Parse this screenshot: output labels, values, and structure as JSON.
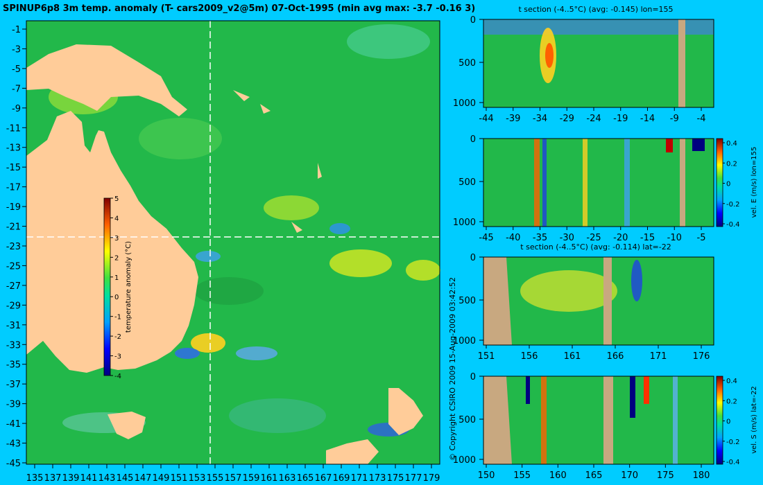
{
  "map": {
    "title": "SPINUP6p8 3m temp. anomaly (T- cars2009_v2@5m) 07-Oct-1995 (min avg max: -3.7 -0.16 3)",
    "xticks": [
      "135",
      "137",
      "139",
      "141",
      "143",
      "145",
      "147",
      "149",
      "151",
      "153",
      "155",
      "157",
      "159",
      "161",
      "163",
      "165",
      "167",
      "169",
      "171",
      "173",
      "175",
      "177",
      "179"
    ],
    "yticks": [
      "-1",
      "-3",
      "-5",
      "-7",
      "-9",
      "-11",
      "-13",
      "-15",
      "-17",
      "-19",
      "-21",
      "-23",
      "-25",
      "-27",
      "-29",
      "-31",
      "-33",
      "-35",
      "-37",
      "-39",
      "-41",
      "-43",
      "-45"
    ],
    "crosshair_lon": 155,
    "crosshair_lat": -22,
    "colorbar": {
      "label": "temperature anomaly (°C)",
      "ticks": [
        "5",
        "4",
        "3",
        "2",
        "1",
        "0",
        "-1",
        "-2",
        "-3",
        "-4"
      ],
      "min": -4,
      "max": 5
    },
    "colors": {
      "ocean": "#22b84a",
      "land": "#ffcc99",
      "crosshair": "#ffffff"
    }
  },
  "copyright": "© Copyright CSIRO 2009   15-Aug-2009 03:42:52",
  "panels": [
    {
      "id": "t-section-lon",
      "title": "t section (-4..5°C) (avg: -0.145) lon=155",
      "xticks": [
        "-44",
        "-39",
        "-34",
        "-29",
        "-24",
        "-19",
        "-14",
        "-9",
        "-4"
      ],
      "yticks": [
        "0",
        "500",
        "1000"
      ],
      "colorbar": null
    },
    {
      "id": "velE-lon",
      "title": "",
      "xticks": [
        "-45",
        "-40",
        "-35",
        "-30",
        "-25",
        "-20",
        "-15",
        "-10",
        "-5"
      ],
      "yticks": [
        "0",
        "500",
        "1000"
      ],
      "colorbar": {
        "label": "vel. E (m/s) lon=155",
        "ticks": [
          "0.4",
          "0.2",
          "0",
          "-0.2",
          "-0.4"
        ]
      }
    },
    {
      "id": "t-section-lat",
      "title": "t section (-4..5°C) (avg: -0.114) lat=-22",
      "xticks": [
        "151",
        "156",
        "161",
        "166",
        "171",
        "176"
      ],
      "yticks": [
        "0",
        "500",
        "1000"
      ],
      "colorbar": null
    },
    {
      "id": "velS-lat",
      "title": "",
      "xticks": [
        "150",
        "155",
        "160",
        "165",
        "170",
        "175",
        "180"
      ],
      "yticks": [
        "0",
        "500",
        "1000"
      ],
      "colorbar": {
        "label": "vel. S (m/s) lat=-22",
        "ticks": [
          "0.4",
          "0.2",
          "0",
          "-0.2",
          "-0.4"
        ]
      }
    }
  ],
  "chart_data": [
    {
      "type": "heatmap",
      "title": "SPINUP6p8 3m temp. anomaly (T- cars2009_v2@5m) 07-Oct-1995 (min avg max: -3.7 -0.16 3)",
      "x": "longitude",
      "xlim": [
        135,
        180
      ],
      "y": "latitude",
      "ylim": [
        -45,
        0
      ],
      "zlim": [
        -4,
        5
      ],
      "colorbar_label": "temperature anomaly (°C)",
      "stats": {
        "min": -3.7,
        "avg": -0.16,
        "max": 3
      }
    },
    {
      "type": "heatmap",
      "title": "t section (-4..5°C) (avg: -0.145) lon=155",
      "xlim": [
        -45,
        -1
      ],
      "ylim": [
        1050,
        0
      ],
      "zlim": [
        -4,
        5
      ],
      "avg": -0.145
    },
    {
      "type": "heatmap",
      "title": "",
      "xlim": [
        -45,
        -1
      ],
      "ylim": [
        1050,
        0
      ],
      "zlim": [
        -0.5,
        0.5
      ],
      "colorbar_label": "vel. E (m/s) lon=155"
    },
    {
      "type": "heatmap",
      "title": "t section (-4..5°C) (avg: -0.114) lat=-22",
      "xlim": [
        150,
        180
      ],
      "ylim": [
        1050,
        0
      ],
      "zlim": [
        -4,
        5
      ],
      "avg": -0.114
    },
    {
      "type": "heatmap",
      "title": "",
      "xlim": [
        150,
        180
      ],
      "ylim": [
        1050,
        0
      ],
      "zlim": [
        -0.5,
        0.5
      ],
      "colorbar_label": "vel. S (m/s) lat=-22"
    }
  ]
}
